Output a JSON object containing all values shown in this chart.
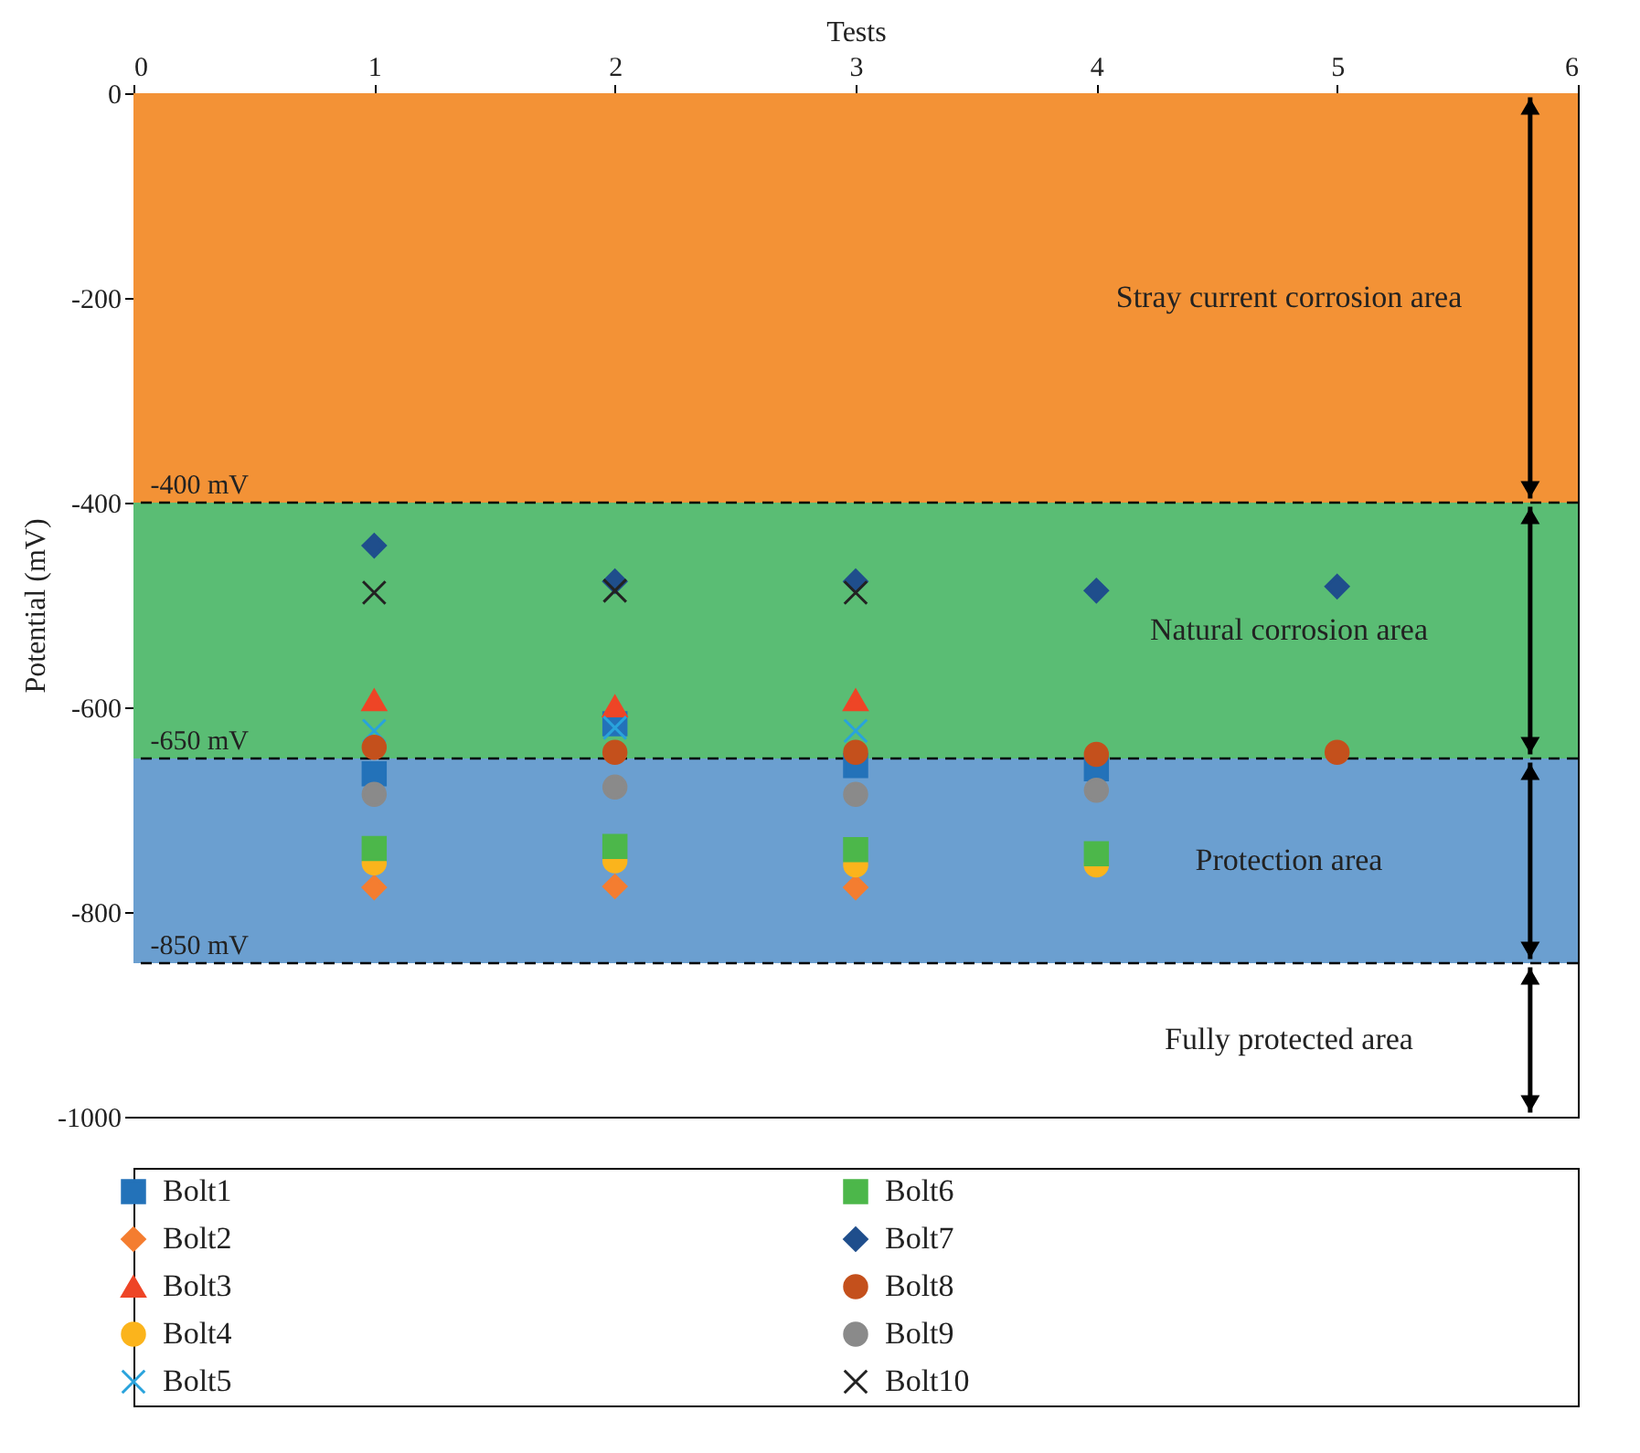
{
  "chart_data": {
    "type": "scatter",
    "xlabel": "Tests",
    "ylabel": "Potential (mV)",
    "x": [
      1,
      2,
      3,
      4,
      5
    ],
    "xlim": [
      0,
      6
    ],
    "xticks": [
      0,
      1,
      2,
      3,
      4,
      5,
      6
    ],
    "ylim": [
      -1000,
      0
    ],
    "yticks": [
      -1000,
      -800,
      -600,
      -400,
      -200,
      0
    ],
    "grid": false,
    "legend": "bottom",
    "series": [
      {
        "name": "Bolt1",
        "color": "#2372b9",
        "marker": "square",
        "values": [
          -665,
          -616,
          -657,
          -660,
          null
        ]
      },
      {
        "name": "Bolt2",
        "color": "#f47d30",
        "marker": "diamond",
        "values": [
          -776,
          -775,
          -776,
          null,
          null
        ]
      },
      {
        "name": "Bolt3",
        "color": "#ee4526",
        "marker": "triangle",
        "values": [
          -593,
          -599,
          -593,
          null,
          null
        ]
      },
      {
        "name": "Bolt4",
        "color": "#fbb41c",
        "marker": "circle",
        "values": [
          -752,
          -750,
          -754,
          -754,
          null
        ]
      },
      {
        "name": "Bolt5",
        "color": "#29a3dc",
        "marker": "cross",
        "values": [
          -623,
          -620,
          -623,
          null,
          null
        ]
      },
      {
        "name": "Bolt6",
        "color": "#4cb74a",
        "marker": "square",
        "values": [
          -738,
          -736,
          -739,
          -743,
          null
        ]
      },
      {
        "name": "Bolt7",
        "color": "#1f4e8c",
        "marker": "diamond",
        "values": [
          -442,
          -477,
          -477,
          -486,
          -482
        ]
      },
      {
        "name": "Bolt8",
        "color": "#c4501c",
        "marker": "circle",
        "values": [
          -639,
          -644,
          -644,
          -646,
          -644
        ]
      },
      {
        "name": "Bolt9",
        "color": "#8a8a8a",
        "marker": "circle",
        "values": [
          -685,
          -678,
          -685,
          -681,
          null
        ]
      },
      {
        "name": "Bolt10",
        "color": "#222222",
        "marker": "cross",
        "values": [
          -488,
          -486,
          -488,
          null,
          null
        ]
      }
    ],
    "bands": [
      {
        "axis": "y",
        "from": 0,
        "to": -400,
        "label": "Stray current corrosion area",
        "color": "#f39236"
      },
      {
        "axis": "y",
        "from": -400,
        "to": -650,
        "label": "Natural corrosion area",
        "color": "#5abd74"
      },
      {
        "axis": "y",
        "from": -650,
        "to": -850,
        "label": "Protection area",
        "color": "#6b9fd0"
      },
      {
        "axis": "y",
        "from": -850,
        "to": -1000,
        "label": "Fully protected area",
        "color": "#ffffff"
      }
    ],
    "ref_lines": [
      {
        "axis": "y",
        "value": -400,
        "label": "-400 mV",
        "line_style": "dashed"
      },
      {
        "axis": "y",
        "value": -650,
        "label": "-650 mV",
        "line_style": "dashed"
      },
      {
        "axis": "y",
        "value": -850,
        "label": "-850 mV",
        "line_style": "dashed"
      }
    ]
  }
}
